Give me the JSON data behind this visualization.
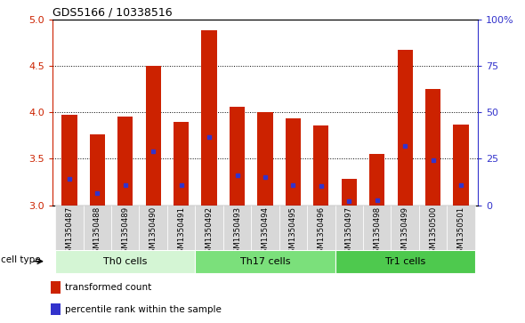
{
  "title": "GDS5166 / 10338516",
  "samples": [
    "GSM1350487",
    "GSM1350488",
    "GSM1350489",
    "GSM1350490",
    "GSM1350491",
    "GSM1350492",
    "GSM1350493",
    "GSM1350494",
    "GSM1350495",
    "GSM1350496",
    "GSM1350497",
    "GSM1350498",
    "GSM1350499",
    "GSM1350500",
    "GSM1350501"
  ],
  "bar_tops": [
    3.97,
    3.76,
    3.95,
    4.5,
    3.9,
    4.88,
    4.06,
    4.0,
    3.93,
    3.86,
    3.28,
    3.55,
    4.67,
    4.25,
    3.87
  ],
  "bar_base": 3.0,
  "blue_dots": [
    3.28,
    3.13,
    3.22,
    3.58,
    3.22,
    3.73,
    3.32,
    3.3,
    3.22,
    3.21,
    3.04,
    3.05,
    3.64,
    3.48,
    3.22
  ],
  "ylim": [
    3.0,
    5.0
  ],
  "yticks": [
    3.0,
    3.5,
    4.0,
    4.5,
    5.0
  ],
  "right_ytick_vals": [
    3.0,
    3.5,
    4.0,
    4.5,
    5.0
  ],
  "right_ylabels": [
    "0",
    "25",
    "50",
    "75",
    "100%"
  ],
  "cell_groups": [
    {
      "label": "Th0 cells",
      "start": 0,
      "end": 4,
      "color": "#d4f5d4"
    },
    {
      "label": "Th17 cells",
      "start": 5,
      "end": 9,
      "color": "#7be07b"
    },
    {
      "label": "Tr1 cells",
      "start": 10,
      "end": 14,
      "color": "#4ec94e"
    }
  ],
  "bar_color": "#cc2200",
  "dot_color": "#3333cc",
  "bar_width": 0.55,
  "cell_type_label": "cell type"
}
